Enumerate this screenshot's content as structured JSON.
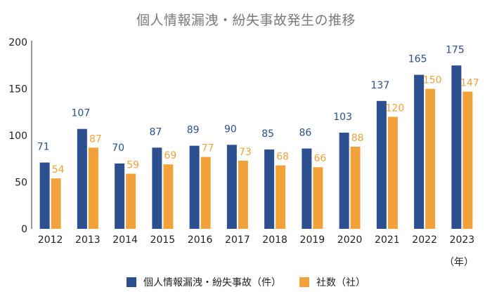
{
  "chart_data": {
    "type": "bar",
    "title": "個人情報漏洩・紛失事故発生の推移",
    "xlabel": "",
    "ylabel": "",
    "x_unit": "（年）",
    "categories": [
      "2012",
      "2013",
      "2014",
      "2015",
      "2016",
      "2017",
      "2018",
      "2019",
      "2020",
      "2021",
      "2022",
      "2023"
    ],
    "series": [
      {
        "name": "個人情報漏洩・紛失事故（件）",
        "color": "#2b4f8f",
        "values": [
          71,
          107,
          70,
          87,
          89,
          90,
          85,
          86,
          103,
          137,
          165,
          175
        ]
      },
      {
        "name": "社数（社）",
        "color": "#f2a23b",
        "values": [
          54,
          87,
          59,
          69,
          77,
          73,
          68,
          66,
          88,
          120,
          150,
          147
        ]
      }
    ],
    "ylim": [
      0,
      200
    ],
    "yticks": [
      0,
      50,
      100,
      150,
      200
    ],
    "grid": false,
    "legend_position": "bottom-center",
    "data_labels": true
  }
}
